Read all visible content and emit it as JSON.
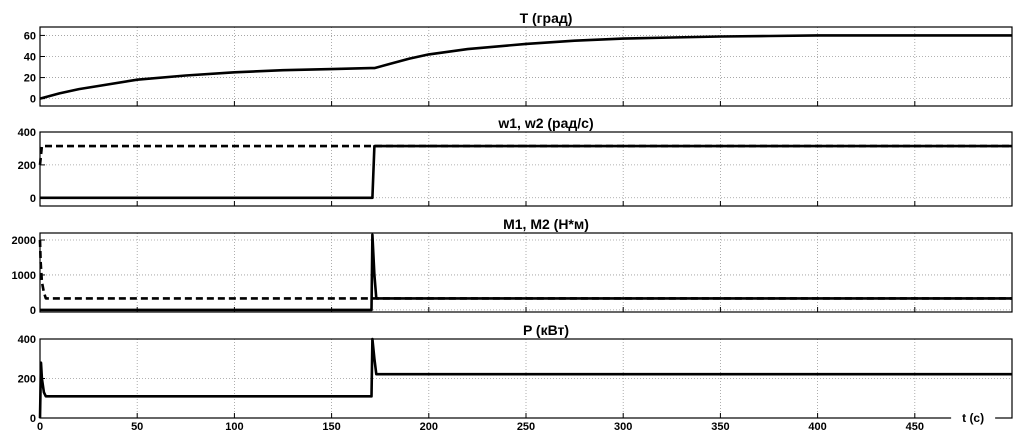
{
  "chart_data": [
    {
      "type": "line",
      "title": "T (град)",
      "xlim": [
        0,
        500
      ],
      "ylim": [
        -7,
        68
      ],
      "yticks": [
        0,
        20,
        40,
        60
      ],
      "grid": true,
      "series": [
        {
          "style": "solid",
          "x": [
            0,
            10,
            20,
            30,
            50,
            75,
            100,
            125,
            150,
            170,
            172,
            180,
            190,
            200,
            220,
            250,
            275,
            300,
            325,
            350,
            375,
            400,
            402,
            450,
            500
          ],
          "y": [
            0,
            5,
            9,
            12,
            18,
            22,
            25,
            27,
            28,
            29,
            29,
            33,
            38,
            42,
            47,
            52,
            55,
            57,
            58,
            59,
            59.5,
            60,
            60,
            60,
            60
          ]
        }
      ]
    },
    {
      "type": "line",
      "title": "w1, w2 (рад/с)",
      "xlim": [
        0,
        500
      ],
      "ylim": [
        -50,
        400
      ],
      "yticks": [
        0,
        200,
        400
      ],
      "grid": true,
      "series": [
        {
          "style": "solid",
          "x": [
            0,
            1,
            170,
            171,
            172,
            500
          ],
          "y": [
            0,
            0,
            0,
            0,
            314,
            314
          ]
        },
        {
          "style": "dashed",
          "x": [
            0,
            0.5,
            1,
            170,
            500
          ],
          "y": [
            200,
            260,
            314,
            314,
            314
          ]
        }
      ]
    },
    {
      "type": "line",
      "title": "M1, M2 (Н*м)",
      "xlim": [
        0,
        500
      ],
      "ylim": [
        -60,
        2200
      ],
      "yticks": [
        0,
        1000,
        2000
      ],
      "grid": true,
      "series": [
        {
          "style": "solid",
          "x": [
            0,
            170,
            170.5,
            171,
            172,
            173,
            500
          ],
          "y": [
            0,
            0,
            0,
            2150,
            1000,
            330,
            330
          ]
        },
        {
          "style": "dashed",
          "x": [
            0,
            0.3,
            1,
            2,
            3,
            500
          ],
          "y": [
            2000,
            1400,
            800,
            500,
            330,
            330
          ]
        }
      ]
    },
    {
      "type": "line",
      "title": "P (кВт)",
      "xlim": [
        0,
        500
      ],
      "xlabel": "t (c)",
      "xticks": [
        0,
        50,
        100,
        150,
        200,
        250,
        300,
        350,
        400,
        450
      ],
      "ylim": [
        0,
        400
      ],
      "yticks": [
        0,
        200,
        400
      ],
      "grid": true,
      "series": [
        {
          "style": "solid",
          "x": [
            0,
            0.5,
            1,
            2,
            3,
            170,
            170.5,
            171,
            172,
            173,
            500
          ],
          "y": [
            0,
            280,
            200,
            130,
            110,
            110,
            110,
            400,
            300,
            222,
            222
          ]
        }
      ]
    }
  ]
}
